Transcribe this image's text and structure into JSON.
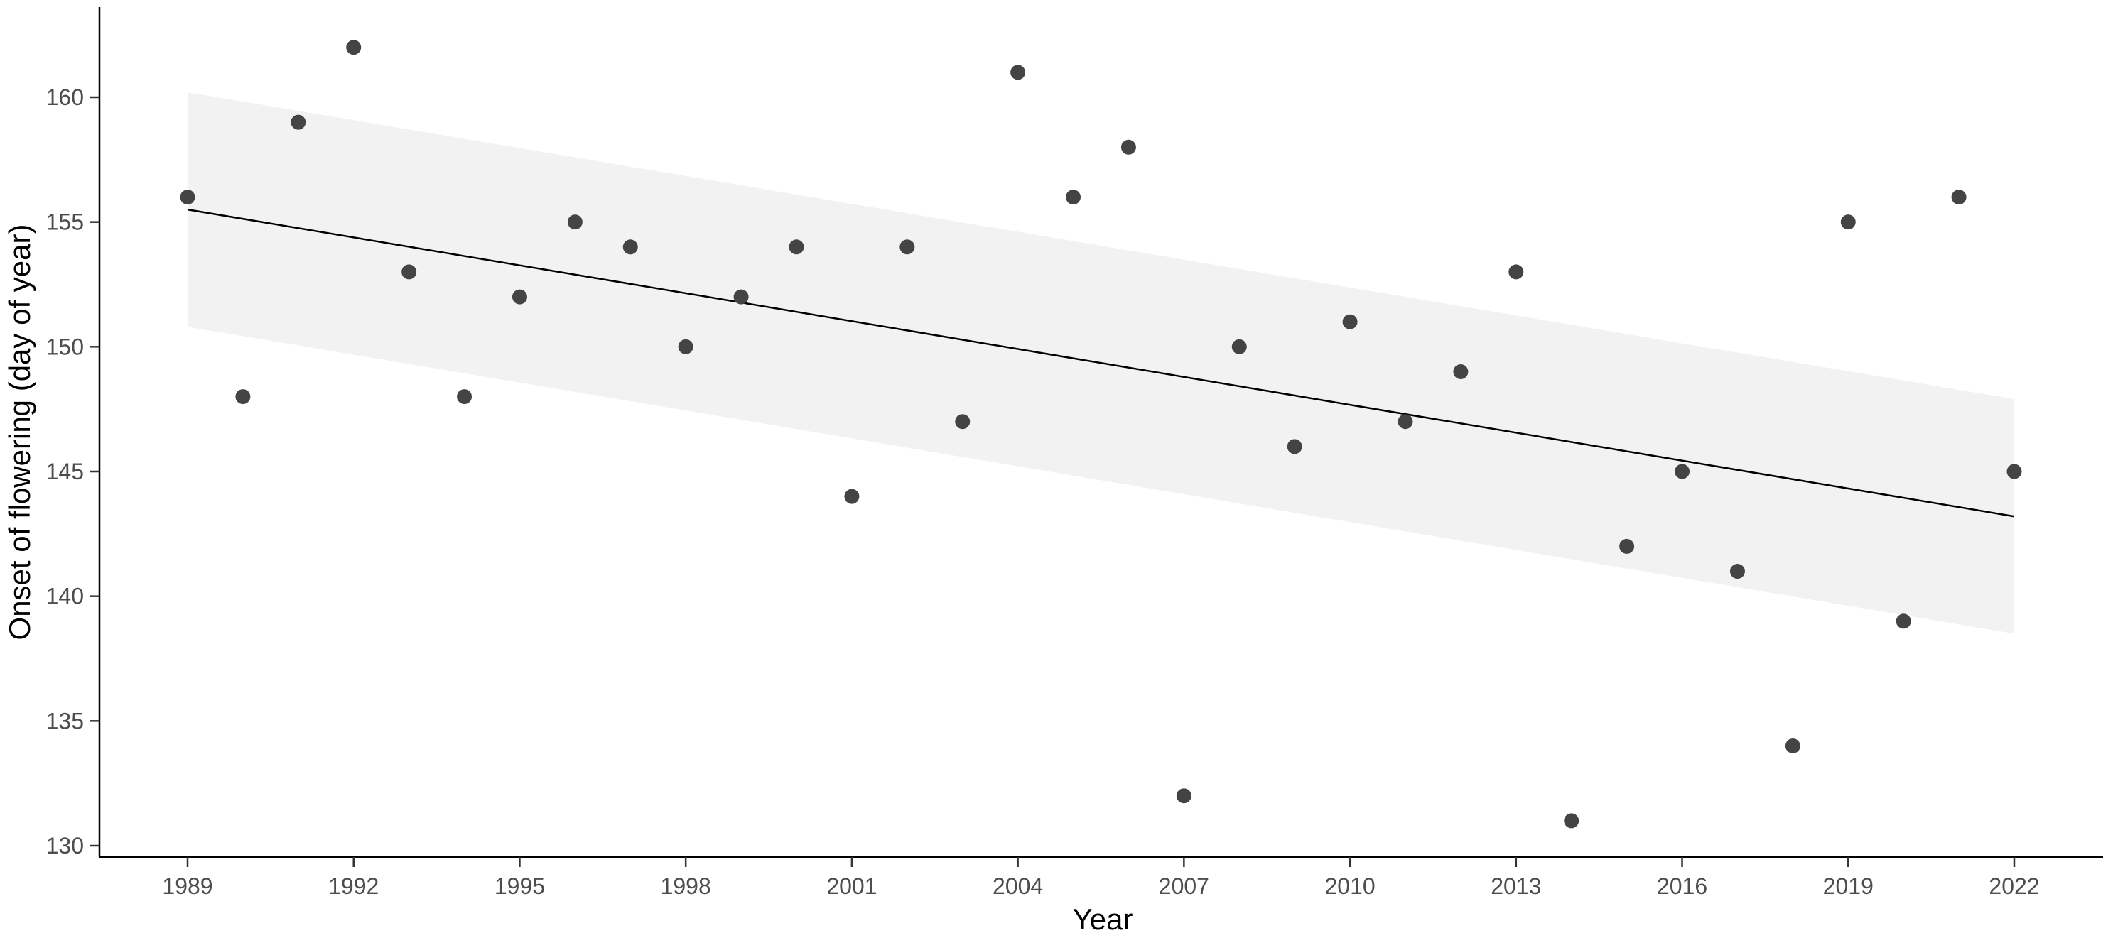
{
  "chart_data": {
    "type": "scatter",
    "title": "",
    "xlabel": "Year",
    "ylabel": "Onset of flowering (day of year)",
    "xlim": [
      1987.4,
      2023.6
    ],
    "ylim": [
      129.5,
      163.5
    ],
    "x_ticks": [
      1989,
      1992,
      1995,
      1998,
      2001,
      2004,
      2007,
      2010,
      2013,
      2016,
      2019,
      2022
    ],
    "y_ticks": [
      130,
      135,
      140,
      145,
      150,
      155,
      160
    ],
    "grid": false,
    "legend": "none",
    "point_color": "#444444",
    "points": [
      {
        "x": 1989,
        "y": 156
      },
      {
        "x": 1990,
        "y": 148
      },
      {
        "x": 1991,
        "y": 159
      },
      {
        "x": 1992,
        "y": 162
      },
      {
        "x": 1993,
        "y": 153
      },
      {
        "x": 1994,
        "y": 148
      },
      {
        "x": 1995,
        "y": 152
      },
      {
        "x": 1996,
        "y": 155
      },
      {
        "x": 1997,
        "y": 154
      },
      {
        "x": 1998,
        "y": 150
      },
      {
        "x": 1999,
        "y": 152
      },
      {
        "x": 2000,
        "y": 154
      },
      {
        "x": 2001,
        "y": 144
      },
      {
        "x": 2002,
        "y": 154
      },
      {
        "x": 2003,
        "y": 147
      },
      {
        "x": 2004,
        "y": 161
      },
      {
        "x": 2005,
        "y": 156
      },
      {
        "x": 2006,
        "y": 158
      },
      {
        "x": 2007,
        "y": 132
      },
      {
        "x": 2008,
        "y": 150
      },
      {
        "x": 2009,
        "y": 146
      },
      {
        "x": 2010,
        "y": 151
      },
      {
        "x": 2011,
        "y": 147
      },
      {
        "x": 2012,
        "y": 149
      },
      {
        "x": 2013,
        "y": 153
      },
      {
        "x": 2014,
        "y": 131
      },
      {
        "x": 2015,
        "y": 142
      },
      {
        "x": 2016,
        "y": 145
      },
      {
        "x": 2017,
        "y": 141
      },
      {
        "x": 2018,
        "y": 134
      },
      {
        "x": 2019,
        "y": 155
      },
      {
        "x": 2020,
        "y": 139
      },
      {
        "x": 2021,
        "y": 156
      },
      {
        "x": 2022,
        "y": 145
      }
    ],
    "trend_line": {
      "type": "linear",
      "color": "#000000",
      "x": [
        1989,
        2022
      ],
      "y": [
        155.5,
        143.2
      ],
      "confidence_band": {
        "color": "#f2f2f2",
        "lower": [
          150.8,
          138.5
        ],
        "upper": [
          160.2,
          147.9
        ]
      }
    }
  }
}
